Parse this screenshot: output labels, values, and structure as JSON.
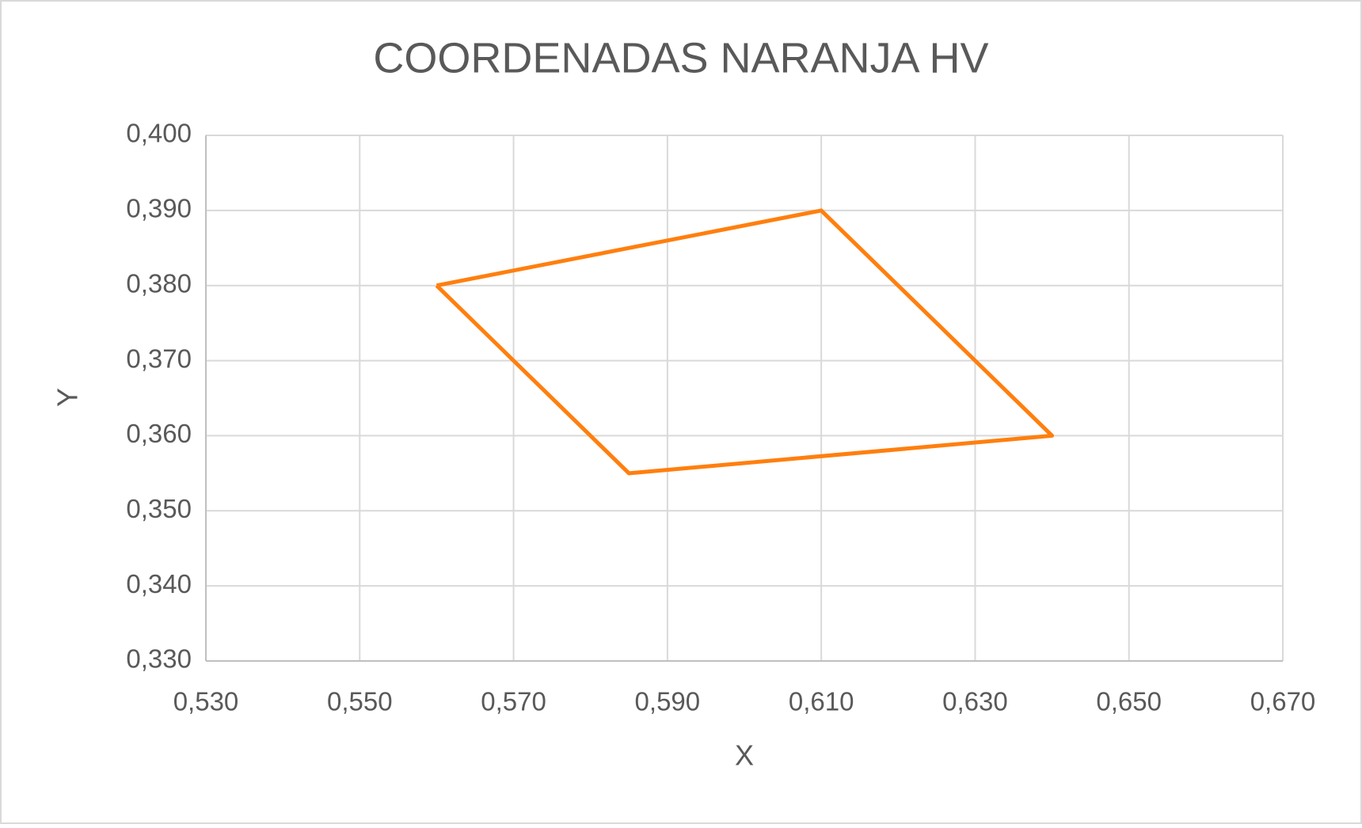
{
  "chart_data": {
    "type": "scatter",
    "title": "COORDENADAS NARANJA HV",
    "x_label": "X",
    "y_label": "Y",
    "x": [
      0.56,
      0.61,
      0.64,
      0.585,
      0.56
    ],
    "values": [
      0.38,
      0.39,
      0.36,
      0.355,
      0.38
    ],
    "color": "#ff7f0e",
    "lines": true,
    "grid": true,
    "xlim": [
      0.53,
      0.67
    ],
    "ylim": [
      0.33,
      0.4
    ],
    "xticks": [
      {
        "value": 0.53,
        "label": "0,530"
      },
      {
        "value": 0.55,
        "label": "0,550"
      },
      {
        "value": 0.57,
        "label": "0,570"
      },
      {
        "value": 0.59,
        "label": "0,590"
      },
      {
        "value": 0.61,
        "label": "0,610"
      },
      {
        "value": 0.63,
        "label": "0,630"
      },
      {
        "value": 0.65,
        "label": "0,650"
      },
      {
        "value": 0.67,
        "label": "0,670"
      }
    ],
    "yticks": [
      {
        "value": 0.33,
        "label": "0,330"
      },
      {
        "value": 0.34,
        "label": "0,340"
      },
      {
        "value": 0.35,
        "label": "0,350"
      },
      {
        "value": 0.36,
        "label": "0,360"
      },
      {
        "value": 0.37,
        "label": "0,370"
      },
      {
        "value": 0.38,
        "label": "0,380"
      },
      {
        "value": 0.39,
        "label": "0,390"
      },
      {
        "value": 0.4,
        "label": "0,400"
      }
    ]
  }
}
